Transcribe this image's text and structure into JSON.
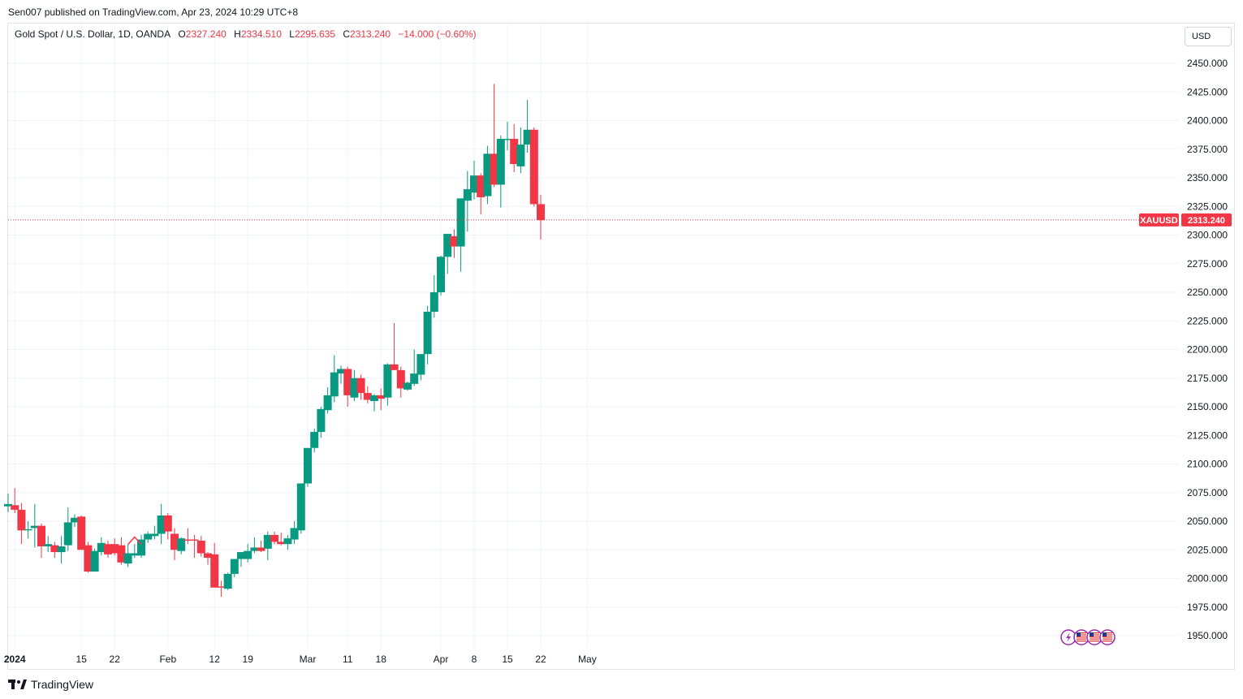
{
  "header": {
    "published": "Sen007 published on TradingView.com, Apr 23, 2024 10:29 UTC+8"
  },
  "legend": {
    "symbol": "Gold Spot / U.S. Dollar, 1D, OANDA",
    "o_label": "O",
    "o_value": "2327.240",
    "h_label": "H",
    "h_value": "2334.510",
    "l_label": "L",
    "l_value": "2295.635",
    "c_label": "C",
    "c_value": "2313.240",
    "change": "−14.000 (−0.60%)"
  },
  "currency_button": "USD",
  "brand": {
    "name": "TradingView",
    "logo": "tradingview-logo-icon"
  },
  "colors": {
    "up": "#089981",
    "down": "#f23645",
    "grid": "#f0f3fa",
    "price_line": "#f23645"
  },
  "chart_data": {
    "type": "candlestick",
    "symbol": "XAUUSD",
    "last_price_label": "2313.240",
    "last_price": 2313.24,
    "ylim": [
      1935,
      2465
    ],
    "y_ticks": [
      1950,
      1975,
      2000,
      2025,
      2050,
      2075,
      2100,
      2125,
      2150,
      2175,
      2200,
      2225,
      2250,
      2275,
      2300,
      2325,
      2350,
      2375,
      2400,
      2425,
      2450
    ],
    "y_tick_labels": [
      "1950.000",
      "1975.000",
      "2000.000",
      "2025.000",
      "2050.000",
      "2075.000",
      "2100.000",
      "2125.000",
      "2150.000",
      "2175.000",
      "2200.000",
      "2225.000",
      "2250.000",
      "2275.000",
      "2300.000",
      "2325.000",
      "2350.000",
      "2375.000",
      "2400.000",
      "2425.000",
      "2450.000"
    ],
    "x_ticks": [
      {
        "label": "2024",
        "bar": 1
      },
      {
        "label": "15",
        "bar": 11
      },
      {
        "label": "22",
        "bar": 16
      },
      {
        "label": "Feb",
        "bar": 24
      },
      {
        "label": "12",
        "bar": 31
      },
      {
        "label": "19",
        "bar": 36
      },
      {
        "label": "Mar",
        "bar": 45
      },
      {
        "label": "11",
        "bar": 51
      },
      {
        "label": "18",
        "bar": 56
      },
      {
        "label": "Apr",
        "bar": 65
      },
      {
        "label": "8",
        "bar": 70
      },
      {
        "label": "15",
        "bar": 75
      },
      {
        "label": "22",
        "bar": 80
      },
      {
        "label": "May",
        "bar": 87
      }
    ],
    "candles": [
      [
        2063,
        2074,
        2058,
        2065
      ],
      [
        2064,
        2079,
        2057,
        2060
      ],
      [
        2060,
        2066,
        2030,
        2042
      ],
      [
        2042,
        2050,
        2035,
        2043
      ],
      [
        2044,
        2065,
        2027,
        2046
      ],
      [
        2046,
        2048,
        2018,
        2028
      ],
      [
        2028,
        2037,
        2023,
        2030
      ],
      [
        2029,
        2032,
        2018,
        2023
      ],
      [
        2023,
        2037,
        2013,
        2028
      ],
      [
        2029,
        2062,
        2024,
        2049
      ],
      [
        2049,
        2056,
        2045,
        2053
      ],
      [
        2054,
        2055,
        2025,
        2025
      ],
      [
        2029,
        2032,
        2005,
        2006
      ],
      [
        2006,
        2026,
        2006,
        2024
      ],
      [
        2023,
        2036,
        2020,
        2031
      ],
      [
        2030,
        2033,
        2018,
        2021
      ],
      [
        2030,
        2035,
        2020,
        2022
      ],
      [
        2029,
        2036,
        2012,
        2014
      ],
      [
        2013,
        2030,
        2010,
        2022
      ],
      [
        2020,
        2030,
        2018,
        2022
      ],
      [
        2020,
        2038,
        2018,
        2034
      ],
      [
        2034,
        2041,
        2031,
        2039
      ],
      [
        2037,
        2046,
        2034,
        2039
      ],
      [
        2039,
        2065,
        2030,
        2055
      ],
      [
        2055,
        2057,
        2034,
        2041
      ],
      [
        2039,
        2044,
        2016,
        2025
      ],
      [
        2024,
        2036,
        2021,
        2035
      ],
      [
        2034,
        2044,
        2030,
        2033
      ],
      [
        2034,
        2038,
        2018,
        2033
      ],
      [
        2033,
        2037,
        2019,
        2022
      ],
      [
        2022,
        2023,
        2012,
        2018
      ],
      [
        2021,
        2031,
        1992,
        1992
      ],
      [
        1993,
        1998,
        1984,
        1992
      ],
      [
        1991,
        2005,
        1990,
        2004
      ],
      [
        2004,
        2015,
        2001,
        2017
      ],
      [
        2017,
        2023,
        2010,
        2023
      ],
      [
        2017,
        2030,
        2014,
        2024
      ],
      [
        2024,
        2036,
        2022,
        2027
      ],
      [
        2027,
        2033,
        2023,
        2024
      ],
      [
        2026,
        2041,
        2016,
        2038
      ],
      [
        2038,
        2041,
        2030,
        2032
      ],
      [
        2032,
        2040,
        2029,
        2030
      ],
      [
        2030,
        2038,
        2025,
        2035
      ],
      [
        2034,
        2050,
        2030,
        2044
      ],
      [
        2042,
        2083,
        2039,
        2083
      ],
      [
        2083,
        2113,
        2080,
        2114
      ],
      [
        2114,
        2131,
        2110,
        2128
      ],
      [
        2128,
        2150,
        2123,
        2148
      ],
      [
        2147,
        2167,
        2144,
        2160
      ],
      [
        2159,
        2195,
        2154,
        2180
      ],
      [
        2179,
        2186,
        2170,
        2183
      ],
      [
        2183,
        2185,
        2150,
        2160
      ],
      [
        2158,
        2182,
        2155,
        2175
      ],
      [
        2175,
        2178,
        2156,
        2162
      ],
      [
        2162,
        2168,
        2153,
        2156
      ],
      [
        2155,
        2161,
        2146,
        2160
      ],
      [
        2160,
        2166,
        2147,
        2157
      ],
      [
        2158,
        2188,
        2151,
        2187
      ],
      [
        2187,
        2223,
        2182,
        2182
      ],
      [
        2182,
        2185,
        2158,
        2166
      ],
      [
        2165,
        2172,
        2164,
        2171
      ],
      [
        2170,
        2200,
        2168,
        2179
      ],
      [
        2178,
        2196,
        2173,
        2196
      ],
      [
        2196,
        2238,
        2187,
        2233
      ],
      [
        2233,
        2265,
        2228,
        2250
      ],
      [
        2250,
        2282,
        2247,
        2281
      ],
      [
        2281,
        2301,
        2266,
        2301
      ],
      [
        2299,
        2305,
        2280,
        2290
      ],
      [
        2290,
        2332,
        2268,
        2332
      ],
      [
        2330,
        2356,
        2303,
        2340
      ],
      [
        2337,
        2365,
        2331,
        2352
      ],
      [
        2352,
        2354,
        2318,
        2333
      ],
      [
        2334,
        2378,
        2327,
        2371
      ],
      [
        2371,
        2432,
        2342,
        2344
      ],
      [
        2344,
        2387,
        2324,
        2384
      ],
      [
        2383,
        2399,
        2374,
        2384
      ],
      [
        2384,
        2397,
        2355,
        2362
      ],
      [
        2360,
        2394,
        2354,
        2379
      ],
      [
        2379,
        2418,
        2372,
        2392
      ],
      [
        2392,
        2394,
        2325,
        2327
      ],
      [
        2327,
        2335,
        2296,
        2313
      ]
    ]
  },
  "event_icons": [
    "lightning-icon",
    "us-flag-icon",
    "us-flag-icon",
    "us-flag-icon"
  ]
}
